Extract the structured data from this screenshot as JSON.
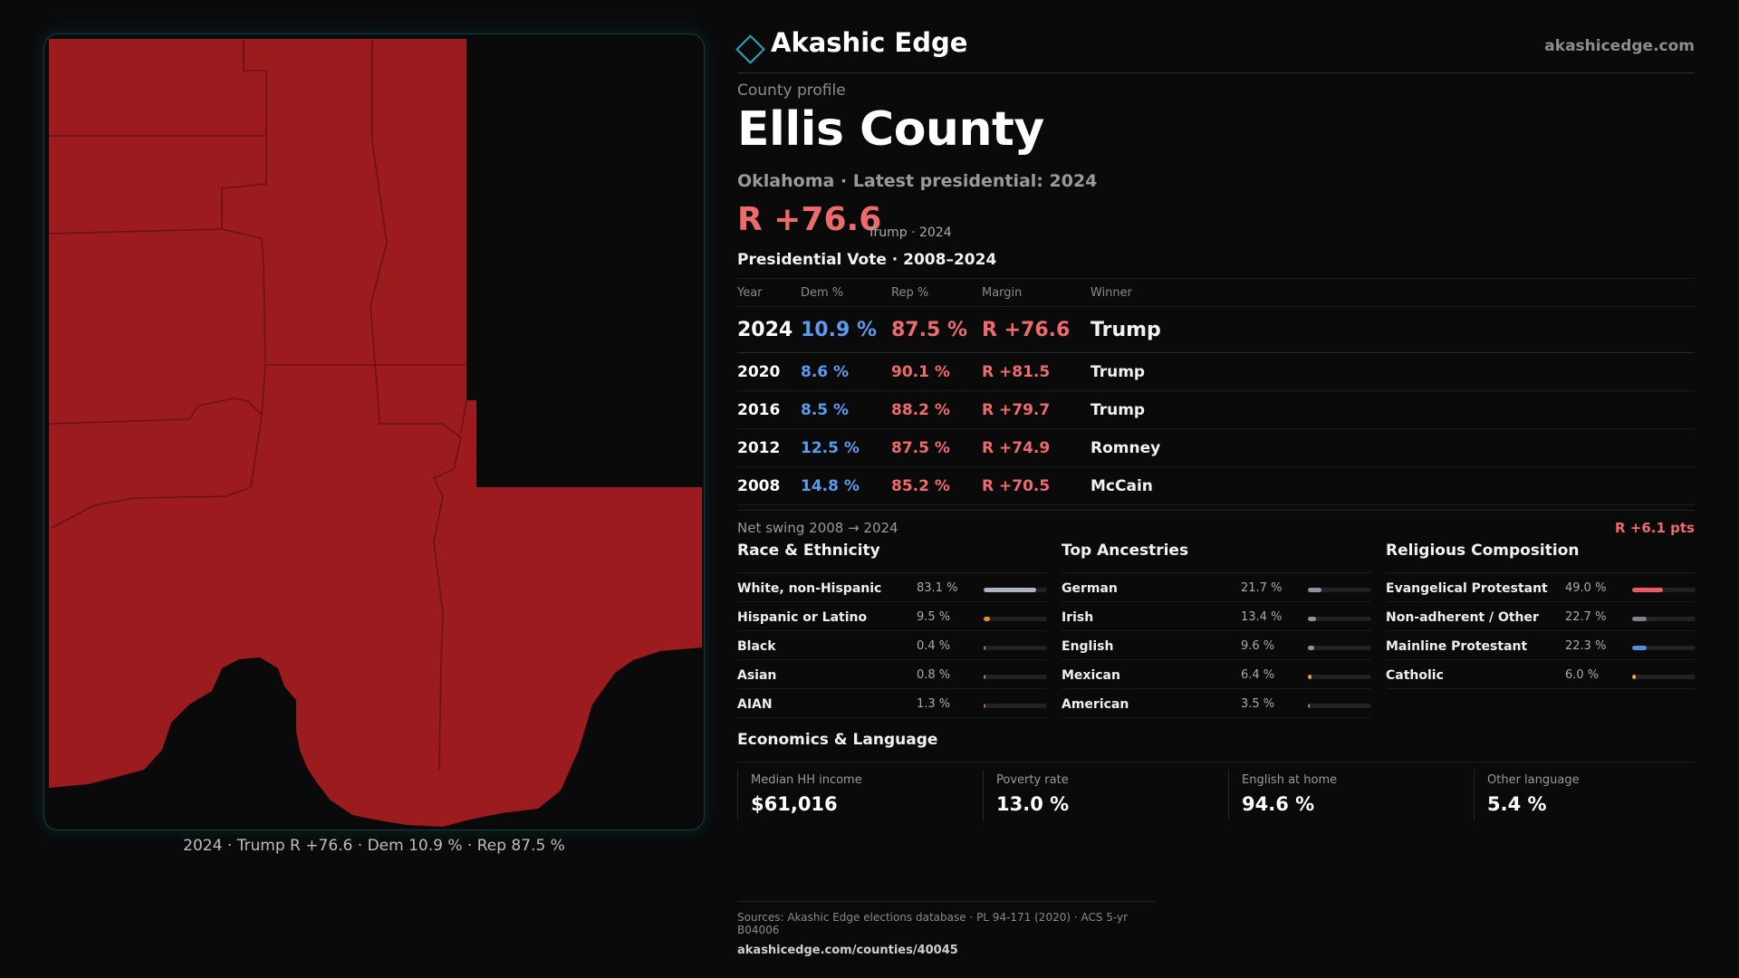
{
  "brand": {
    "name": "Akashic Edge",
    "url": "akashicedge.com",
    "accent": "#28a8b4"
  },
  "profile": {
    "kicker": "County profile",
    "title": "Ellis County",
    "subline": "Oklahoma · Latest presidential: 2024",
    "margin": "R +76.6",
    "margin_note": "Trump · 2024"
  },
  "map": {
    "caption": "2024 · Trump R +76.6 · Dem 10.9 % · Rep 87.5 %",
    "fill_color": "#9b1b1e",
    "border_color": "#6c1215"
  },
  "vote": {
    "title": "Presidential Vote · 2008–2024",
    "columns": [
      "Year",
      "Dem %",
      "Rep %",
      "Margin",
      "Winner"
    ],
    "rows": [
      {
        "year": "2024",
        "dem": "10.9 %",
        "rep": "87.5 %",
        "margin": "R +76.6",
        "winner": "Trump"
      },
      {
        "year": "2020",
        "dem": "8.6 %",
        "rep": "90.1 %",
        "margin": "R +81.5",
        "winner": "Trump"
      },
      {
        "year": "2016",
        "dem": "8.5 %",
        "rep": "88.2 %",
        "margin": "R +79.7",
        "winner": "Trump"
      },
      {
        "year": "2012",
        "dem": "12.5 %",
        "rep": "87.5 %",
        "margin": "R +74.9",
        "winner": "Romney"
      },
      {
        "year": "2008",
        "dem": "14.8 %",
        "rep": "85.2 %",
        "margin": "R +70.5",
        "winner": "McCain"
      }
    ],
    "colors": {
      "dem": "#5b9bf0",
      "rep": "#ef6b6b"
    }
  },
  "swing": {
    "label": "Net swing 2008 → 2024",
    "value": "R +6.1 pts"
  },
  "race": {
    "title": "Race & Ethnicity",
    "items": [
      {
        "label": "White, non-Hispanic",
        "pct": "83.1 %",
        "value": 0.831,
        "color": "#aab4c4"
      },
      {
        "label": "Hispanic or Latino",
        "pct": "9.5 %",
        "value": 0.095,
        "color": "#e8902e"
      },
      {
        "label": "Black",
        "pct": "0.4 %",
        "value": 0.004,
        "color": "#8a8a8a"
      },
      {
        "label": "Asian",
        "pct": "0.8 %",
        "value": 0.008,
        "color": "#3fb8a8"
      },
      {
        "label": "AIAN",
        "pct": "1.3 %",
        "value": 0.013,
        "color": "#c0703a"
      }
    ]
  },
  "ancestry": {
    "title": "Top Ancestries",
    "items": [
      {
        "label": "German",
        "pct": "21.7 %",
        "value": 0.217,
        "color": "#8a94a2"
      },
      {
        "label": "Irish",
        "pct": "13.4 %",
        "value": 0.134,
        "color": "#8a94a2"
      },
      {
        "label": "English",
        "pct": "9.6 %",
        "value": 0.096,
        "color": "#8a94a2"
      },
      {
        "label": "Mexican",
        "pct": "6.4 %",
        "value": 0.064,
        "color": "#e0a030"
      },
      {
        "label": "American",
        "pct": "3.5 %",
        "value": 0.035,
        "color": "#8a94a2"
      }
    ]
  },
  "religion": {
    "title": "Religious Composition",
    "items": [
      {
        "label": "Evangelical Protestant",
        "pct": "49.0 %",
        "value": 0.49,
        "color": "#e85b66"
      },
      {
        "label": "Non-adherent / Other",
        "pct": "22.7 %",
        "value": 0.227,
        "color": "#7a7f88"
      },
      {
        "label": "Mainline Protestant",
        "pct": "22.3 %",
        "value": 0.223,
        "color": "#4f8fe6"
      },
      {
        "label": "Catholic",
        "pct": "6.0 %",
        "value": 0.06,
        "color": "#e0b030"
      }
    ]
  },
  "econ": {
    "title": "Economics & Language",
    "cards": [
      {
        "label": "Median HH income",
        "value": "$61,016"
      },
      {
        "label": "Poverty rate",
        "value": "13.0 %"
      },
      {
        "label": "English at home",
        "value": "94.6 %"
      },
      {
        "label": "Other language",
        "value": "5.4 %"
      }
    ]
  },
  "footer": {
    "sources": "Sources: Akashic Edge elections database · PL 94-171 (2020) · ACS 5-yr B04006",
    "link": "akashicedge.com/counties/40045"
  }
}
